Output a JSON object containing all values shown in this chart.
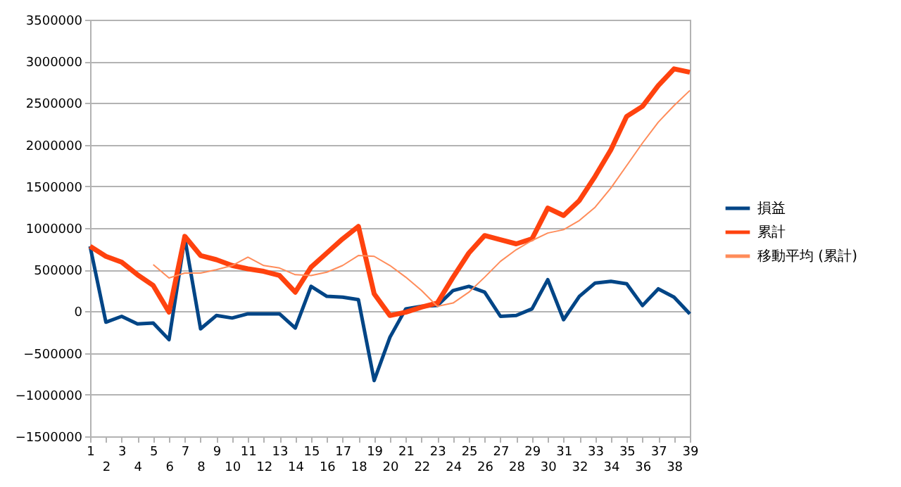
{
  "chart_data": {
    "type": "line",
    "categories": [
      "1",
      "2",
      "3",
      "4",
      "5",
      "6",
      "7",
      "8",
      "9",
      "10",
      "11",
      "12",
      "13",
      "14",
      "15",
      "16",
      "17",
      "18",
      "19",
      "20",
      "21",
      "22",
      "23",
      "24",
      "25",
      "26",
      "27",
      "28",
      "29",
      "30",
      "31",
      "32",
      "33",
      "34",
      "35",
      "36",
      "37",
      "38",
      "39"
    ],
    "series": [
      {
        "name": "損益",
        "color": "#004586",
        "values": [
          780000,
          -130000,
          -60000,
          -150000,
          -140000,
          -340000,
          880000,
          -210000,
          -50000,
          -80000,
          -30000,
          -30000,
          -30000,
          -200000,
          300000,
          180000,
          170000,
          140000,
          -830000,
          -310000,
          30000,
          60000,
          70000,
          250000,
          300000,
          230000,
          -60000,
          -50000,
          30000,
          380000,
          -100000,
          180000,
          340000,
          360000,
          330000,
          70000,
          270000,
          170000,
          -30000
        ]
      },
      {
        "name": "累計",
        "color": "#ff420e",
        "values": [
          780000,
          660000,
          590000,
          440000,
          310000,
          -10000,
          900000,
          670000,
          620000,
          550000,
          510000,
          480000,
          430000,
          230000,
          530000,
          700000,
          870000,
          1020000,
          210000,
          -50000,
          -10000,
          50000,
          100000,
          410000,
          700000,
          910000,
          860000,
          810000,
          870000,
          1240000,
          1150000,
          1330000,
          1620000,
          1940000,
          2340000,
          2460000,
          2710000,
          2910000,
          2870000
        ]
      },
      {
        "name": "移動平均 (累計)",
        "color": "#ff8c5a",
        "values": [
          null,
          null,
          null,
          null,
          560000,
          400000,
          460000,
          460000,
          500000,
          550000,
          650000,
          550000,
          520000,
          440000,
          430000,
          470000,
          550000,
          670000,
          660000,
          550000,
          410000,
          250000,
          60000,
          100000,
          230000,
          410000,
          600000,
          740000,
          850000,
          940000,
          980000,
          1090000,
          1250000,
          1480000,
          1750000,
          2020000,
          2270000,
          2470000,
          2650000
        ]
      }
    ],
    "ylim": [
      -1500000,
      3500000
    ],
    "yticks": [
      -1500000,
      -1000000,
      -500000,
      0,
      500000,
      1000000,
      1500000,
      2000000,
      2500000,
      3000000,
      3500000
    ],
    "grid": "y",
    "legend": "right"
  }
}
